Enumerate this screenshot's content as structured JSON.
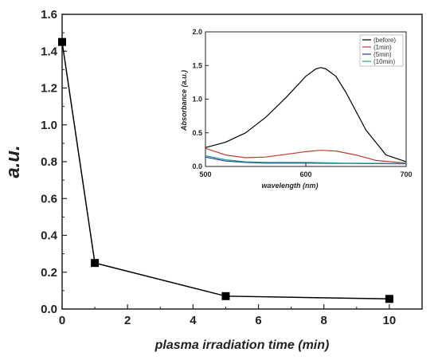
{
  "chart_data": [
    {
      "type": "line",
      "xlabel": "plasma irradiation time (min)",
      "ylabel": "a.u.",
      "xlim": [
        0,
        11
      ],
      "ylim": [
        0,
        1.6
      ],
      "xticks": [
        "0",
        "2",
        "4",
        "6",
        "8",
        "10"
      ],
      "yticks": [
        "0.0",
        "0.2",
        "0.4",
        "0.6",
        "0.8",
        "1.0",
        "1.2",
        "1.4",
        "1.6"
      ],
      "series": [
        {
          "x": [
            0,
            1,
            5,
            10
          ],
          "y": [
            1.45,
            0.25,
            0.07,
            0.055
          ],
          "marker": "square",
          "color": "#000000"
        }
      ]
    },
    {
      "type": "line",
      "xlabel": "wavelength (nm)",
      "ylabel": "Absorbance (a.u.)",
      "xlim": [
        500,
        700
      ],
      "ylim": [
        0,
        2.0
      ],
      "xticks": [
        "500",
        "600",
        "700"
      ],
      "yticks": [
        "0.0",
        "0.5",
        "1.0",
        "1.5",
        "2.0"
      ],
      "legend_position": "top-right",
      "series": [
        {
          "name": "(before)",
          "color": "#000000",
          "x": [
            500,
            520,
            540,
            560,
            580,
            600,
            610,
            615,
            620,
            630,
            640,
            660,
            680,
            700
          ],
          "y": [
            0.28,
            0.36,
            0.5,
            0.73,
            1.02,
            1.34,
            1.45,
            1.47,
            1.45,
            1.34,
            1.1,
            0.54,
            0.17,
            0.07
          ]
        },
        {
          "name": "(1min)",
          "color": "#c0392b",
          "x": [
            500,
            520,
            540,
            560,
            580,
            600,
            615,
            630,
            650,
            670,
            700
          ],
          "y": [
            0.27,
            0.17,
            0.13,
            0.14,
            0.18,
            0.22,
            0.24,
            0.23,
            0.17,
            0.09,
            0.05
          ]
        },
        {
          "name": "(5min)",
          "color": "#1f3fa8",
          "x": [
            500,
            520,
            540,
            560,
            600,
            640,
            700
          ],
          "y": [
            0.14,
            0.08,
            0.06,
            0.05,
            0.05,
            0.045,
            0.04
          ]
        },
        {
          "name": "(10min)",
          "color": "#2a9d8f",
          "x": [
            500,
            520,
            540,
            560,
            600,
            640,
            700
          ],
          "y": [
            0.16,
            0.1,
            0.07,
            0.06,
            0.06,
            0.05,
            0.045
          ]
        }
      ]
    }
  ]
}
